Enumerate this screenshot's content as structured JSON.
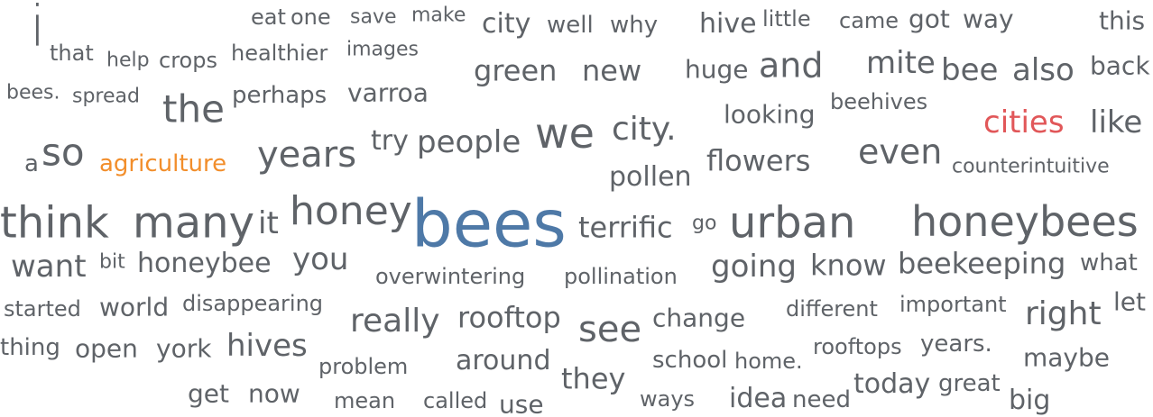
{
  "chart_data": {
    "type": "wordcloud",
    "title": "",
    "colors": {
      "default": "#5f6368",
      "highlight_blue": "#4e79a7",
      "highlight_orange": "#f28e2b",
      "highlight_red": "#e15759"
    },
    "words": [
      {
        "text": "i",
        "weight": 62,
        "color": "#5f6368"
      },
      {
        "text": "eat",
        "weight": 24,
        "color": "#5f6368"
      },
      {
        "text": "one",
        "weight": 24,
        "color": "#5f6368"
      },
      {
        "text": "save",
        "weight": 22,
        "color": "#5f6368"
      },
      {
        "text": "make",
        "weight": 22,
        "color": "#5f6368"
      },
      {
        "text": "city",
        "weight": 30,
        "color": "#5f6368"
      },
      {
        "text": "well",
        "weight": 26,
        "color": "#5f6368"
      },
      {
        "text": "why",
        "weight": 26,
        "color": "#5f6368"
      },
      {
        "text": "hive",
        "weight": 30,
        "color": "#5f6368"
      },
      {
        "text": "little",
        "weight": 24,
        "color": "#5f6368"
      },
      {
        "text": "came",
        "weight": 24,
        "color": "#5f6368"
      },
      {
        "text": "got",
        "weight": 28,
        "color": "#5f6368"
      },
      {
        "text": "way",
        "weight": 28,
        "color": "#5f6368"
      },
      {
        "text": "this",
        "weight": 28,
        "color": "#5f6368"
      },
      {
        "text": "that",
        "weight": 24,
        "color": "#5f6368"
      },
      {
        "text": "help",
        "weight": 22,
        "color": "#5f6368"
      },
      {
        "text": "crops",
        "weight": 24,
        "color": "#5f6368"
      },
      {
        "text": "healthier",
        "weight": 24,
        "color": "#5f6368"
      },
      {
        "text": "images",
        "weight": 22,
        "color": "#5f6368"
      },
      {
        "text": "green",
        "weight": 32,
        "color": "#5f6368"
      },
      {
        "text": "new",
        "weight": 32,
        "color": "#5f6368"
      },
      {
        "text": "huge",
        "weight": 28,
        "color": "#5f6368"
      },
      {
        "text": "and",
        "weight": 38,
        "color": "#5f6368"
      },
      {
        "text": "mite",
        "weight": 34,
        "color": "#5f6368"
      },
      {
        "text": "bee",
        "weight": 34,
        "color": "#5f6368"
      },
      {
        "text": "also",
        "weight": 34,
        "color": "#5f6368"
      },
      {
        "text": "back",
        "weight": 28,
        "color": "#5f6368"
      },
      {
        "text": "bees.",
        "weight": 22,
        "color": "#5f6368"
      },
      {
        "text": "spread",
        "weight": 22,
        "color": "#5f6368"
      },
      {
        "text": "the",
        "weight": 42,
        "color": "#5f6368"
      },
      {
        "text": "perhaps",
        "weight": 26,
        "color": "#5f6368"
      },
      {
        "text": "varroa",
        "weight": 28,
        "color": "#5f6368"
      },
      {
        "text": "looking",
        "weight": 28,
        "color": "#5f6368"
      },
      {
        "text": "beehives",
        "weight": 24,
        "color": "#5f6368"
      },
      {
        "text": "cities",
        "weight": 34,
        "color": "#e15759"
      },
      {
        "text": "like",
        "weight": 34,
        "color": "#5f6368"
      },
      {
        "text": "a",
        "weight": 26,
        "color": "#5f6368"
      },
      {
        "text": "so",
        "weight": 42,
        "color": "#5f6368"
      },
      {
        "text": "agriculture",
        "weight": 26,
        "color": "#f28e2b"
      },
      {
        "text": "years",
        "weight": 40,
        "color": "#5f6368"
      },
      {
        "text": "try",
        "weight": 30,
        "color": "#5f6368"
      },
      {
        "text": "people",
        "weight": 34,
        "color": "#5f6368"
      },
      {
        "text": "we",
        "weight": 46,
        "color": "#5f6368"
      },
      {
        "text": "city.",
        "weight": 36,
        "color": "#5f6368"
      },
      {
        "text": "flowers",
        "weight": 32,
        "color": "#5f6368"
      },
      {
        "text": "even",
        "weight": 38,
        "color": "#5f6368"
      },
      {
        "text": "counterintuitive",
        "weight": 22,
        "color": "#5f6368"
      },
      {
        "text": "pollen",
        "weight": 30,
        "color": "#5f6368"
      },
      {
        "text": "think",
        "weight": 48,
        "color": "#5f6368"
      },
      {
        "text": "many",
        "weight": 48,
        "color": "#5f6368"
      },
      {
        "text": "it",
        "weight": 34,
        "color": "#5f6368"
      },
      {
        "text": "honey",
        "weight": 44,
        "color": "#5f6368"
      },
      {
        "text": "bees",
        "weight": 72,
        "color": "#4e79a7"
      },
      {
        "text": "terrific",
        "weight": 32,
        "color": "#5f6368"
      },
      {
        "text": "go",
        "weight": 22,
        "color": "#5f6368"
      },
      {
        "text": "urban",
        "weight": 48,
        "color": "#5f6368"
      },
      {
        "text": "honeybees",
        "weight": 46,
        "color": "#5f6368"
      },
      {
        "text": "want",
        "weight": 34,
        "color": "#5f6368"
      },
      {
        "text": "bit",
        "weight": 22,
        "color": "#5f6368"
      },
      {
        "text": "honeybee",
        "weight": 30,
        "color": "#5f6368"
      },
      {
        "text": "you",
        "weight": 34,
        "color": "#5f6368"
      },
      {
        "text": "overwintering",
        "weight": 24,
        "color": "#5f6368"
      },
      {
        "text": "pollination",
        "weight": 24,
        "color": "#5f6368"
      },
      {
        "text": "going",
        "weight": 34,
        "color": "#5f6368"
      },
      {
        "text": "know",
        "weight": 32,
        "color": "#5f6368"
      },
      {
        "text": "beekeeping",
        "weight": 32,
        "color": "#5f6368"
      },
      {
        "text": "what",
        "weight": 26,
        "color": "#5f6368"
      },
      {
        "text": "started",
        "weight": 24,
        "color": "#5f6368"
      },
      {
        "text": "world",
        "weight": 28,
        "color": "#5f6368"
      },
      {
        "text": "disappearing",
        "weight": 24,
        "color": "#5f6368"
      },
      {
        "text": "really",
        "weight": 36,
        "color": "#5f6368"
      },
      {
        "text": "rooftop",
        "weight": 32,
        "color": "#5f6368"
      },
      {
        "text": "see",
        "weight": 40,
        "color": "#5f6368"
      },
      {
        "text": "change",
        "weight": 28,
        "color": "#5f6368"
      },
      {
        "text": "different",
        "weight": 24,
        "color": "#5f6368"
      },
      {
        "text": "important",
        "weight": 24,
        "color": "#5f6368"
      },
      {
        "text": "right",
        "weight": 36,
        "color": "#5f6368"
      },
      {
        "text": "let",
        "weight": 28,
        "color": "#5f6368"
      },
      {
        "text": "thing",
        "weight": 26,
        "color": "#5f6368"
      },
      {
        "text": "open",
        "weight": 28,
        "color": "#5f6368"
      },
      {
        "text": "york",
        "weight": 28,
        "color": "#5f6368"
      },
      {
        "text": "hives",
        "weight": 34,
        "color": "#5f6368"
      },
      {
        "text": "rooftops",
        "weight": 24,
        "color": "#5f6368"
      },
      {
        "text": "years.",
        "weight": 26,
        "color": "#5f6368"
      },
      {
        "text": "maybe",
        "weight": 28,
        "color": "#5f6368"
      },
      {
        "text": "problem",
        "weight": 24,
        "color": "#5f6368"
      },
      {
        "text": "around",
        "weight": 30,
        "color": "#5f6368"
      },
      {
        "text": "they",
        "weight": 32,
        "color": "#5f6368"
      },
      {
        "text": "school",
        "weight": 26,
        "color": "#5f6368"
      },
      {
        "text": "home.",
        "weight": 24,
        "color": "#5f6368"
      },
      {
        "text": "get",
        "weight": 28,
        "color": "#5f6368"
      },
      {
        "text": "now",
        "weight": 28,
        "color": "#5f6368"
      },
      {
        "text": "mean",
        "weight": 24,
        "color": "#5f6368"
      },
      {
        "text": "called",
        "weight": 24,
        "color": "#5f6368"
      },
      {
        "text": "use",
        "weight": 28,
        "color": "#5f6368"
      },
      {
        "text": "ways",
        "weight": 24,
        "color": "#5f6368"
      },
      {
        "text": "idea",
        "weight": 30,
        "color": "#5f6368"
      },
      {
        "text": "need",
        "weight": 26,
        "color": "#5f6368"
      },
      {
        "text": "today",
        "weight": 30,
        "color": "#5f6368"
      },
      {
        "text": "great",
        "weight": 26,
        "color": "#5f6368"
      },
      {
        "text": "big",
        "weight": 30,
        "color": "#5f6368"
      }
    ]
  }
}
